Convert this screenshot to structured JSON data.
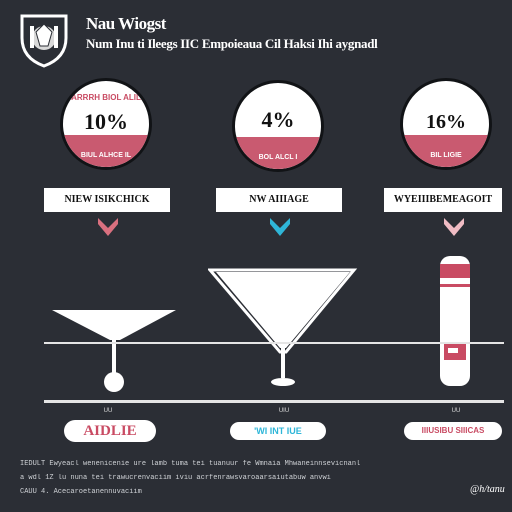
{
  "header": {
    "title": "Nau Wiogst",
    "subtitle": "Num Inu ti Ileegs IIC Empoieaua Cil Haksi Ihi aygnadl"
  },
  "badges": [
    {
      "top_text": "ARRRH BIOL ALIL",
      "percent": "10%",
      "band_text": "BIUL ALHCE IL"
    },
    {
      "top_text": "",
      "percent": "4%",
      "band_text": "BOL ALCL I"
    },
    {
      "top_text": "",
      "percent": "16%",
      "band_text": "BIL LIGIE"
    }
  ],
  "labels": [
    "NIEW ISIKCHICK",
    "NW AIIIAGE",
    "WYEIIIBEMEAGOIT"
  ],
  "arrow_colors": [
    "#d9707f",
    "#2fb6d8",
    "#f0bcc4"
  ],
  "small_labels": [
    "UU",
    "UIU",
    "UU"
  ],
  "pills": [
    {
      "text": "AIDLIE",
      "color": "#c94b63"
    },
    {
      "text": "'WI INT IUE",
      "color": "#2fb6d8"
    },
    {
      "text": "IIIUSIBU SIIICAS",
      "color": "#c94b63"
    }
  ],
  "footer": {
    "line1": "IEDULT  Ewyeacl wenenicenie ure lamb tuma tei tuanuur fe Wmnaia  Mhwaneinnsevicnanl",
    "line2": "a   wdl 1Z   lu  nuna tei trawucrenvaciim  iviu acrfenrawsvaroaarsaiutabuw anvwi",
    "line3": "CAUU 4. Acecaroetanennuvaciim",
    "signature": "@h/tanu"
  }
}
